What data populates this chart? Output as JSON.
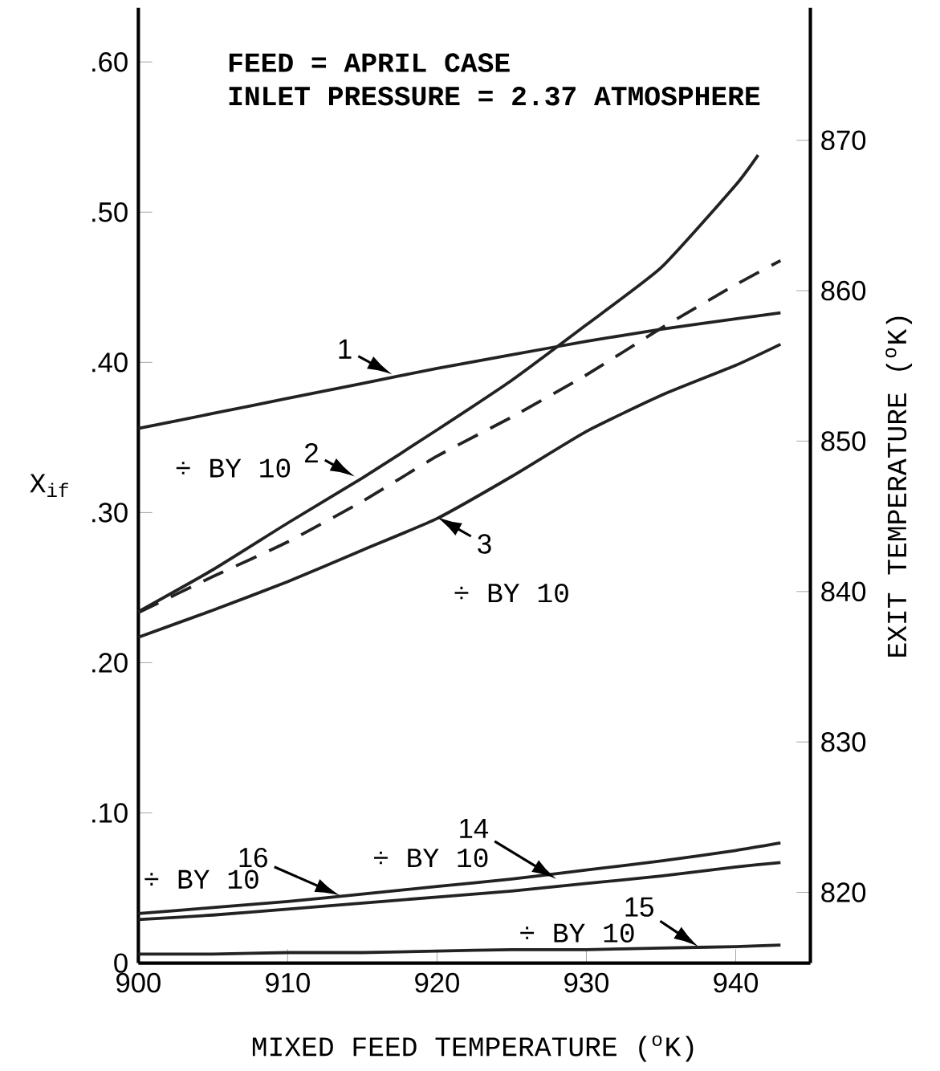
{
  "chart_data": {
    "type": "line",
    "title": "FEED = APRIL CASE",
    "subtitle": "INLET PRESSURE = 2.37 ATMOSPHERE",
    "xlabel": "MIXED FEED TEMPERATURE ($^{o}$K)",
    "ylabel": "X$_{if}$",
    "y2label": "EXIT TEMPERATURE ($^{o}$K)",
    "x": [
      900,
      905,
      910,
      915,
      920,
      925,
      930,
      935,
      940,
      943
    ],
    "series": [
      {
        "color": "#222222",
        "values": [
          0.356,
          0.366,
          0.376,
          0.386,
          0.396,
          0.405,
          0.414,
          0.422,
          0.429,
          0.433
        ]
      },
      {
        "color": "#222222",
        "x": [
          900,
          905,
          910,
          915,
          920,
          925,
          930,
          935,
          940,
          941.5
        ],
        "values": [
          0.234,
          0.262,
          0.293,
          0.323,
          0.355,
          0.388,
          0.425,
          0.463,
          0.518,
          0.538
        ]
      },
      {
        "color": "#222222",
        "axis": "y2",
        "line_style": "dashed",
        "values": [
          838.6,
          841.0,
          843.3,
          846.0,
          849.0,
          851.6,
          854.4,
          857.5,
          860.4,
          862.0
        ]
      },
      {
        "color": "#222222",
        "values": [
          0.217,
          0.235,
          0.254,
          0.275,
          0.296,
          0.324,
          0.354,
          0.378,
          0.398,
          0.412
        ]
      },
      {
        "color": "#222222",
        "values": [
          0.033,
          0.037,
          0.041,
          0.046,
          0.051,
          0.056,
          0.062,
          0.068,
          0.075,
          0.08
        ]
      },
      {
        "color": "#222222",
        "values": [
          0.029,
          0.032,
          0.036,
          0.04,
          0.044,
          0.048,
          0.053,
          0.058,
          0.064,
          0.067
        ]
      },
      {
        "color": "#222222",
        "values": [
          0.006,
          0.006,
          0.007,
          0.007,
          0.008,
          0.009,
          0.009,
          0.01,
          0.011,
          0.012
        ]
      }
    ],
    "xlim": [
      900,
      945
    ],
    "xticks": [
      900,
      910,
      920,
      930,
      940
    ],
    "ylim": [
      0,
      0.636
    ],
    "yticks": [
      0,
      {
        "value": 0.1,
        "label": ".10"
      },
      {
        "value": 0.2,
        "label": ".20"
      },
      {
        "value": 0.3,
        "label": ".30"
      },
      {
        "value": 0.4,
        "label": ".40"
      },
      {
        "value": 0.5,
        "label": ".50"
      },
      {
        "value": 0.6,
        "label": ".60"
      }
    ],
    "y2lim": [
      815.3,
      878.8
    ],
    "y2ticks": [
      820,
      830,
      840,
      850,
      860,
      870
    ],
    "annotations": [
      {
        "text": "1",
        "x": 917,
        "y": 0.392
      },
      {
        "text": "2",
        "x": 914.5,
        "y": 0.324
      },
      {
        "text": "3",
        "x": 920,
        "y": 0.297
      },
      {
        "text": "16",
        "x": 913.5,
        "y": 0.045
      },
      {
        "text": "14",
        "x": 928,
        "y": 0.056
      },
      {
        "text": "15",
        "x": 937.5,
        "y": 0.011
      },
      "÷ BY 10",
      "÷ BY 10",
      "÷ BY 10",
      "÷ BY 10",
      "÷ BY 10"
    ]
  }
}
